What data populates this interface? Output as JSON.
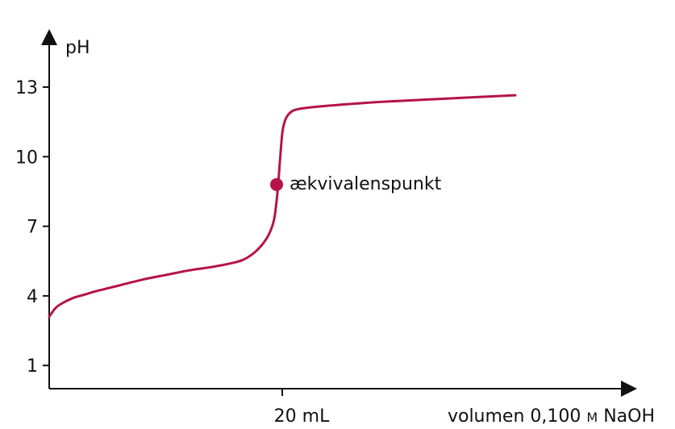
{
  "chart_data": {
    "type": "line",
    "title": "",
    "ylabel": "pH",
    "xlabel": "volumen 0,100 M NaOH",
    "xlabel_parts": {
      "prefix": "volumen 0,100 ",
      "unit": "M",
      "suffix": " NaOH"
    },
    "ylim": [
      0,
      14.3
    ],
    "xlim": [
      0,
      44
    ],
    "yticks": [
      1,
      4,
      7,
      10,
      13
    ],
    "xticks": [
      20
    ],
    "xtick_labels": [
      "20 mL"
    ],
    "grid": false,
    "colors": {
      "curve": "#b5134a",
      "axis": "#111111"
    },
    "series": [
      {
        "x": [
          0,
          0.5,
          1,
          2,
          3,
          4,
          6,
          8,
          10,
          12,
          14,
          16,
          17,
          18,
          18.8,
          19.3,
          19.6,
          19.8,
          20,
          20.2,
          20.5,
          21,
          22,
          24,
          28,
          32,
          36,
          40
        ],
        "y": [
          3.1,
          3.45,
          3.65,
          3.9,
          4.05,
          4.2,
          4.45,
          4.7,
          4.9,
          5.1,
          5.25,
          5.45,
          5.65,
          6.05,
          6.6,
          7.3,
          8.5,
          9.8,
          11.0,
          11.5,
          11.8,
          12.0,
          12.1,
          12.2,
          12.35,
          12.45,
          12.55,
          12.65
        ]
      }
    ],
    "annotations": [
      {
        "label": "ækvivalenspunkt",
        "x": 20,
        "y": 8.8
      }
    ]
  }
}
